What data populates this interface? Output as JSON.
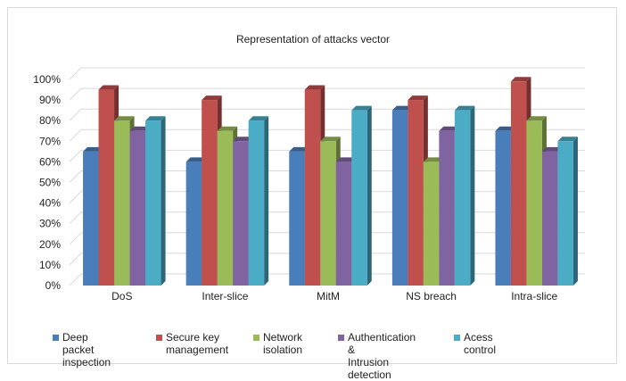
{
  "chart_data": {
    "type": "bar",
    "title": "Representation of attacks vector",
    "categories": [
      "DoS",
      "Inter-slice",
      "MitM",
      "NS breach",
      "Intra-slice"
    ],
    "series": [
      {
        "name": "Deep packet inspection",
        "color": "#4a7ebb",
        "values": [
          65,
          60,
          65,
          85,
          75
        ]
      },
      {
        "name": "Secure key management",
        "color": "#c0504d",
        "values": [
          95,
          90,
          95,
          90,
          99
        ]
      },
      {
        "name": "Network isolation",
        "color": "#9bbb59",
        "values": [
          80,
          75,
          70,
          60,
          80
        ]
      },
      {
        "name": "Authentication & Intrusion detection",
        "color": "#8064a2",
        "values": [
          75,
          70,
          60,
          75,
          65
        ]
      },
      {
        "name": "Acess control",
        "color": "#4bacc6",
        "values": [
          80,
          80,
          85,
          85,
          70
        ]
      }
    ],
    "yticks": [
      "0%",
      "10%",
      "20%",
      "30%",
      "40%",
      "50%",
      "60%",
      "70%",
      "80%",
      "90%",
      "100%"
    ],
    "ylim": [
      0,
      100
    ],
    "xlabel": "",
    "ylabel": "",
    "grid": true,
    "legend_position": "bottom"
  },
  "legend_labels": [
    "Deep packet\ninspection",
    "Secure key\nmanagement",
    "Network isolation",
    "Authentication &\nIntrusion detection",
    "Acess control"
  ]
}
